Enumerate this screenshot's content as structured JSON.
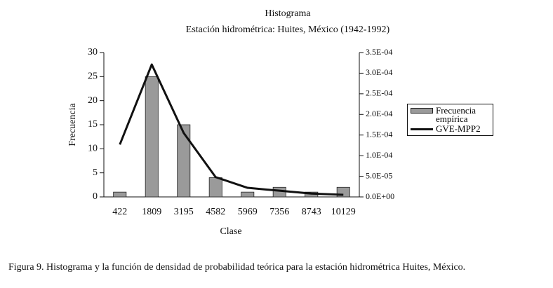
{
  "chart_data": {
    "type": "bar",
    "title": "Histograma",
    "subtitle": "Estación hidrométrica: Huites, México (1942-1992)",
    "x_label": "Clase",
    "y_label": "Frecuencia",
    "caption": "Figura 9. Histograma y la función de densidad de probabilidad teórica para la estación hidrométrica Huites, México.",
    "categories": [
      "422",
      "1809",
      "3195",
      "4582",
      "5969",
      "7356",
      "8743",
      "10129"
    ],
    "series": [
      {
        "name": "Frecuencia empírica",
        "type": "bar",
        "color": "#9a9a9a",
        "values": [
          1,
          25,
          15,
          4,
          1,
          2,
          1,
          2
        ]
      },
      {
        "name": "GVE-MPP2",
        "type": "line",
        "axis": "y2",
        "color": "#111111",
        "values": [
          0.000127,
          0.000321,
          0.000155,
          4.8e-05,
          2.2e-05,
          1.5e-05,
          8e-06,
          5e-06
        ]
      }
    ],
    "ylim": [
      0,
      30
    ],
    "yticks": [
      0,
      5,
      10,
      15,
      20,
      25,
      30
    ],
    "y2lim": [
      0,
      0.00035
    ],
    "y2ticks": [
      {
        "value": 0,
        "label": "0.0E+00"
      },
      {
        "value": 5e-05,
        "label": "5.0E-05"
      },
      {
        "value": 0.0001,
        "label": "1.0E-04"
      },
      {
        "value": 0.00015,
        "label": "1.5E-04"
      },
      {
        "value": 0.0002,
        "label": "2.0E-04"
      },
      {
        "value": 0.00025,
        "label": "2.5E-04"
      },
      {
        "value": 0.0003,
        "label": "3.0E-04"
      },
      {
        "value": 0.00035,
        "label": "3.5E-04"
      }
    ],
    "legend": "right"
  }
}
